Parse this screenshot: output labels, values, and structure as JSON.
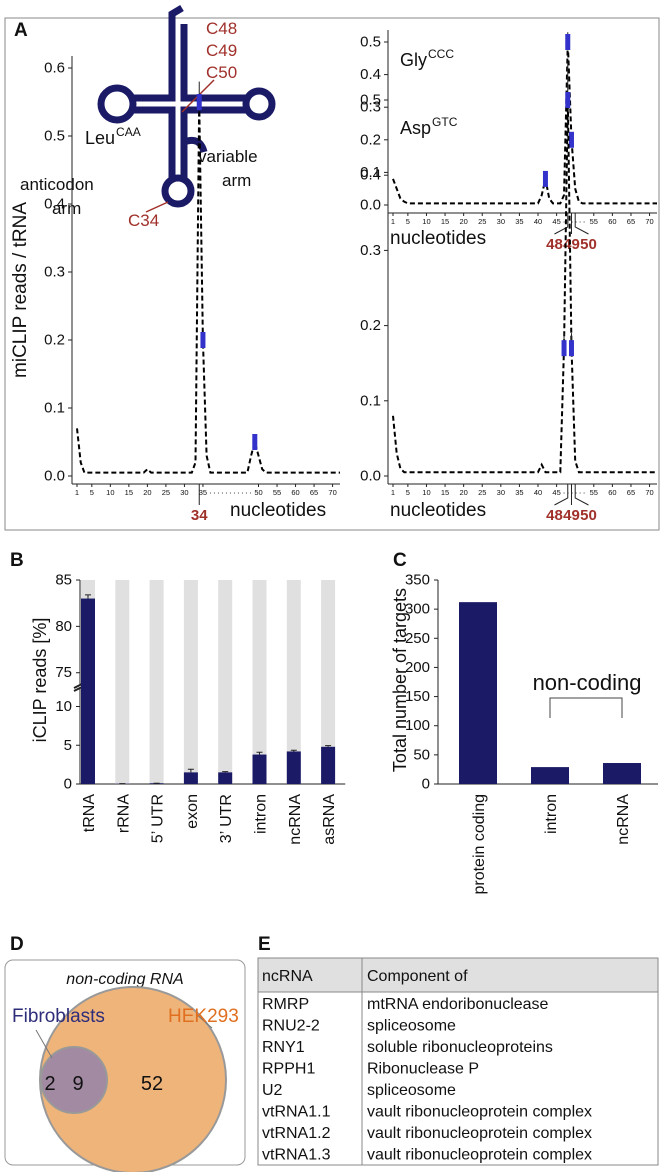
{
  "panel_labels": [
    "A",
    "B",
    "C",
    "D",
    "E"
  ],
  "trna_diagram": {
    "labels": [
      "C48",
      "C49",
      "C50",
      "C34"
    ],
    "variable_arm": [
      "variable",
      "arm"
    ],
    "anticodon_arm": [
      "anticodon",
      "arm"
    ]
  },
  "chart_data": [
    {
      "type": "line",
      "title": "Gly",
      "title_sup": "CCC",
      "x_label": "nucleotides",
      "x": [
        1,
        2,
        3,
        4,
        5,
        6,
        7,
        8,
        9,
        10,
        11,
        12,
        13,
        14,
        15,
        16,
        17,
        18,
        19,
        20,
        21,
        22,
        23,
        24,
        25,
        26,
        27,
        28,
        29,
        30,
        31,
        32,
        33,
        34,
        35,
        36,
        37,
        38,
        39,
        40,
        41,
        42,
        43,
        44,
        45,
        46,
        47,
        48,
        49,
        50,
        51,
        52,
        53,
        54,
        55,
        56,
        57,
        58,
        59,
        60,
        61,
        62,
        63,
        64,
        65,
        66,
        67,
        68,
        69,
        70,
        71,
        72
      ],
      "values": [
        0.08,
        0.05,
        0.02,
        0.01,
        0.005,
        0.005,
        0.005,
        0.005,
        0.005,
        0.005,
        0.005,
        0.005,
        0.005,
        0.005,
        0.005,
        0.005,
        0.005,
        0.005,
        0.005,
        0.005,
        0.005,
        0.005,
        0.005,
        0.005,
        0.005,
        0.005,
        0.005,
        0.005,
        0.005,
        0.005,
        0.005,
        0.005,
        0.005,
        0.005,
        0.005,
        0.005,
        0.005,
        0.005,
        0.005,
        0.005,
        0.03,
        0.08,
        0.02,
        0.005,
        0.005,
        0.005,
        0.03,
        0.5,
        0.2,
        0.05,
        0.01,
        0.005,
        0.005,
        0.005,
        0.005,
        0.005,
        0.005,
        0.005,
        0.005,
        0.005,
        0.005,
        0.005,
        0.005,
        0.005,
        0.005,
        0.005,
        0.005,
        0.005,
        0.005,
        0.005,
        0.005,
        0.005
      ],
      "color": "#000000",
      "line_style": "dashed",
      "error_bars": {
        "x": [
          42,
          48,
          49
        ],
        "values": [
          0.08,
          0.5,
          0.2
        ],
        "errors": [
          0.01,
          0.03,
          0.02
        ],
        "color": "#3333cc"
      },
      "xlim": [
        1,
        72
      ],
      "xticks": [
        1,
        5,
        10,
        15,
        20,
        25,
        30,
        35,
        40,
        45,
        55,
        60,
        65,
        70
      ],
      "highlight_ticks": [
        48,
        49,
        50
      ],
      "highlight_color": "#a0302a",
      "ylim": [
        0,
        0.5
      ],
      "yticks": [
        {
          "value": 0,
          "label": "0.0"
        },
        0.1,
        0.2,
        0.3,
        0.4,
        0.5
      ]
    },
    {
      "type": "line",
      "title": "Leu",
      "title_sup": "CAA",
      "x_label": "nucleotides",
      "y_label": "miCLIP reads / tRNA",
      "x": [
        1,
        2,
        3,
        4,
        5,
        6,
        7,
        8,
        9,
        10,
        11,
        12,
        13,
        14,
        15,
        16,
        17,
        18,
        19,
        20,
        21,
        22,
        23,
        24,
        25,
        26,
        27,
        28,
        29,
        30,
        31,
        32,
        33,
        34,
        35,
        36,
        37,
        38,
        39,
        40,
        41,
        42,
        43,
        44,
        45,
        46,
        47,
        48,
        49,
        50,
        51,
        52,
        53,
        54,
        55,
        56,
        57,
        58,
        59,
        60,
        61,
        62,
        63,
        64,
        65,
        66,
        67,
        68,
        69,
        70,
        71,
        72
      ],
      "values": [
        0.07,
        0.02,
        0.005,
        0.005,
        0.005,
        0.005,
        0.005,
        0.005,
        0.005,
        0.005,
        0.005,
        0.005,
        0.005,
        0.005,
        0.005,
        0.005,
        0.005,
        0.005,
        0.005,
        0.01,
        0.005,
        0.005,
        0.005,
        0.005,
        0.005,
        0.005,
        0.005,
        0.005,
        0.005,
        0.005,
        0.005,
        0.005,
        0.02,
        0.55,
        0.2,
        0.03,
        0.005,
        0.005,
        0.005,
        0.005,
        0.005,
        0.005,
        0.005,
        0.005,
        0.005,
        0.005,
        0.005,
        0.03,
        0.05,
        0.03,
        0.01,
        0.005,
        0.005,
        0.005,
        0.005,
        0.005,
        0.005,
        0.005,
        0.005,
        0.005,
        0.005,
        0.005,
        0.005,
        0.005,
        0.005,
        0.005,
        0.005,
        0.005,
        0.005,
        0.005,
        0.005,
        0.005
      ],
      "color": "#000000",
      "line_style": "dashed",
      "error_bars": {
        "x": [
          34,
          35,
          49
        ],
        "values": [
          0.55,
          0.2,
          0.05
        ],
        "errors": [
          0.03,
          0.01,
          0.01
        ],
        "color": "#3333cc"
      },
      "xlim": [
        1,
        72
      ],
      "xticks": [
        1,
        5,
        10,
        15,
        20,
        25,
        30,
        35,
        50,
        55,
        60,
        65,
        70
      ],
      "highlight_ticks": [
        34
      ],
      "highlight_color": "#a0302a",
      "ylim": [
        0,
        0.6
      ],
      "yticks": [
        {
          "value": 0,
          "label": "0.0"
        },
        0.1,
        0.2,
        0.3,
        0.4,
        0.5,
        0.6
      ]
    },
    {
      "type": "line",
      "title": "Asp",
      "title_sup": "GTC",
      "x_label": "nucleotides",
      "x": [
        1,
        2,
        3,
        4,
        5,
        6,
        7,
        8,
        9,
        10,
        11,
        12,
        13,
        14,
        15,
        16,
        17,
        18,
        19,
        20,
        21,
        22,
        23,
        24,
        25,
        26,
        27,
        28,
        29,
        30,
        31,
        32,
        33,
        34,
        35,
        36,
        37,
        38,
        39,
        40,
        41,
        42,
        43,
        44,
        45,
        46,
        47,
        48,
        49,
        50,
        51,
        52,
        53,
        54,
        55,
        56,
        57,
        58,
        59,
        60,
        61,
        62,
        63,
        64,
        65,
        66,
        67,
        68,
        69,
        70,
        71,
        72
      ],
      "values": [
        0.08,
        0.03,
        0.01,
        0.005,
        0.005,
        0.005,
        0.005,
        0.005,
        0.005,
        0.005,
        0.005,
        0.005,
        0.005,
        0.005,
        0.005,
        0.005,
        0.005,
        0.005,
        0.005,
        0.005,
        0.005,
        0.005,
        0.005,
        0.005,
        0.005,
        0.005,
        0.005,
        0.005,
        0.005,
        0.005,
        0.005,
        0.005,
        0.005,
        0.005,
        0.005,
        0.005,
        0.005,
        0.005,
        0.005,
        0.005,
        0.015,
        0.005,
        0.005,
        0.005,
        0.005,
        0.005,
        0.17,
        0.5,
        0.17,
        0.02,
        0.005,
        0.005,
        0.005,
        0.005,
        0.005,
        0.005,
        0.005,
        0.005,
        0.005,
        0.005,
        0.005,
        0.005,
        0.005,
        0.005,
        0.005,
        0.005,
        0.005,
        0.005,
        0.005,
        0.005,
        0.005,
        0.005
      ],
      "color": "#000000",
      "line_style": "dashed",
      "error_bars": {
        "x": [
          47,
          48,
          49
        ],
        "values": [
          0.17,
          0.5,
          0.17
        ],
        "errors": [
          0.02,
          0.05,
          0.02
        ],
        "color": "#3333cc"
      },
      "xlim": [
        1,
        72
      ],
      "xticks": [
        1,
        5,
        10,
        15,
        20,
        25,
        30,
        35,
        40,
        45,
        55,
        60,
        65,
        70
      ],
      "highlight_ticks": [
        48,
        49,
        50
      ],
      "highlight_color": "#a0302a",
      "ylim": [
        0,
        0.5
      ],
      "yticks": [
        {
          "value": 0,
          "label": "0.0"
        },
        0.1,
        0.2,
        0.3,
        0.4,
        0.5
      ]
    },
    {
      "type": "bar",
      "y_label": "iCLIP reads [%]",
      "categories": [
        "tRNA",
        "rRNA",
        "5’ UTR",
        "exon",
        "3’ UTR",
        "intron",
        "ncRNA",
        "asRNA"
      ],
      "values": [
        83,
        0.05,
        0.1,
        1.5,
        1.5,
        3.8,
        4.2,
        4.8
      ],
      "errors": [
        0.4,
        0,
        0,
        0.4,
        0.1,
        0.3,
        0.15,
        0.15
      ],
      "color": "#1a1a66",
      "background_color": "#e0e0e0",
      "ylim_lower": [
        0,
        12
      ],
      "ylim_upper": [
        74,
        85
      ],
      "yticks": [
        0,
        5,
        10,
        75,
        80,
        85
      ]
    },
    {
      "type": "bar",
      "y_label": "Total number of targets",
      "categories": [
        "protein coding",
        "intron",
        "ncRNA"
      ],
      "values": [
        312,
        29,
        36
      ],
      "color": "#1a1a66",
      "annotation": "non-coding",
      "ylim": [
        0,
        350
      ],
      "yticks": [
        0,
        50,
        100,
        150,
        200,
        250,
        300,
        350
      ]
    }
  ],
  "venn": {
    "title": "non-coding RNA",
    "set_a": "Fibroblasts",
    "set_b": "HEK293",
    "only_a": 2,
    "both": 9,
    "only_b": 52
  },
  "table": {
    "header": [
      "ncRNA",
      "Component of"
    ],
    "rows": [
      [
        "RMRP",
        "mtRNA endoribonuclease"
      ],
      [
        "RNU2-2",
        "spliceosome"
      ],
      [
        "RNY1",
        "soluble ribonucleoproteins"
      ],
      [
        "RPPH1",
        "Ribonuclease P"
      ],
      [
        "U2",
        "spliceosome"
      ],
      [
        "vtRNA1.1",
        "vault ribonucleoprotein complex"
      ],
      [
        "vtRNA1.2",
        "vault ribonucleoprotein complex"
      ],
      [
        "vtRNA1.3",
        "vault ribonucleoprotein complex"
      ]
    ]
  }
}
